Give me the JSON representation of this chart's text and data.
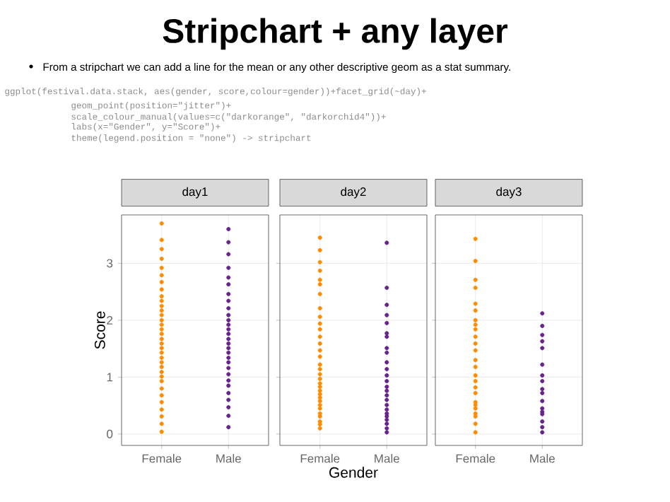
{
  "chart_data": [
    {
      "type": "scatter",
      "title": "day1",
      "ylabel": "Score",
      "categories": [
        "Female",
        "Male"
      ],
      "ylim": [
        -0.2,
        3.85
      ],
      "yticks": [
        0,
        1,
        2,
        3
      ],
      "grid": true,
      "marker": "circle",
      "annotations": [
        "Stripchart + any layer",
        "From a stripchart we can add a line for the mean or any other descriptive geom as a stat summary.",
        "ggplot(festival.data.stack, aes(gender, score,colour=gender))+facet_grid(~day)+",
        "geom_point(position=\"jitter\")+",
        "scale_colour_manual(values=c(\"darkorange\", \"darkorchid4\"))+",
        "labs(x=\"Gender\", y=\"Score\")+",
        "theme(legend.position = \"none\") -> stripchart"
      ],
      "series": [
        {
          "color": "#ff8c00",
          "x": [
            "Female",
            "Female",
            "Female",
            "Female",
            "Female",
            "Female",
            "Female",
            "Female",
            "Female",
            "Female",
            "Female",
            "Female",
            "Female",
            "Female",
            "Female",
            "Female",
            "Female",
            "Female",
            "Female",
            "Female",
            "Female",
            "Female",
            "Female",
            "Female",
            "Female",
            "Female",
            "Female",
            "Female",
            "Female",
            "Female",
            "Female",
            "Female",
            "Female",
            "Female"
          ],
          "values": [
            3.7,
            3.41,
            3.25,
            3.08,
            2.92,
            2.79,
            2.67,
            2.54,
            2.42,
            2.34,
            2.25,
            2.17,
            2.09,
            2.0,
            1.92,
            1.84,
            1.76,
            1.67,
            1.59,
            1.51,
            1.43,
            1.34,
            1.26,
            1.18,
            1.09,
            1.01,
            0.93,
            0.8,
            0.68,
            0.56,
            0.43,
            0.31,
            0.18,
            0.04
          ]
        },
        {
          "color": "#68228b",
          "x": [
            "Male",
            "Male",
            "Male",
            "Male",
            "Male",
            "Male",
            "Male",
            "Male",
            "Male",
            "Male",
            "Male",
            "Male",
            "Male",
            "Male",
            "Male",
            "Male",
            "Male",
            "Male",
            "Male",
            "Male",
            "Male",
            "Male",
            "Male",
            "Male",
            "Male",
            "Male",
            "Male",
            "Male",
            "Male"
          ],
          "values": [
            3.6,
            3.37,
            3.16,
            2.92,
            2.75,
            2.63,
            2.46,
            2.34,
            2.21,
            2.09,
            2.0,
            1.92,
            1.84,
            1.76,
            1.67,
            1.59,
            1.51,
            1.43,
            1.34,
            1.26,
            1.16,
            1.05,
            0.94,
            0.85,
            0.72,
            0.6,
            0.47,
            0.32,
            0.12
          ]
        }
      ]
    },
    {
      "type": "scatter",
      "title": "day2",
      "xlabel": "Gender",
      "categories": [
        "Female",
        "Male"
      ],
      "ylim": [
        -0.2,
        3.85
      ],
      "yticks": [
        0,
        1,
        2,
        3
      ],
      "tick_labels": "x",
      "grid": true,
      "marker": "circle",
      "series": [
        {
          "color": "#ff8c00",
          "x": [
            "Female",
            "Female",
            "Female",
            "Female",
            "Female",
            "Female",
            "Female",
            "Female",
            "Female",
            "Female",
            "Female",
            "Female",
            "Female",
            "Female",
            "Female",
            "Female",
            "Female",
            "Female",
            "Female",
            "Female",
            "Female",
            "Female",
            "Female",
            "Female",
            "Female",
            "Female",
            "Female",
            "Female",
            "Female",
            "Female",
            "Female",
            "Female"
          ],
          "values": [
            3.45,
            3.23,
            3.02,
            2.87,
            2.71,
            2.63,
            2.46,
            2.21,
            2.06,
            1.94,
            1.84,
            1.71,
            1.59,
            1.47,
            1.36,
            1.22,
            1.14,
            1.05,
            0.97,
            0.89,
            0.83,
            0.76,
            0.7,
            0.64,
            0.58,
            0.51,
            0.45,
            0.36,
            0.31,
            0.22,
            0.17,
            0.1
          ]
        },
        {
          "color": "#68228b",
          "x": [
            "Male",
            "Male",
            "Male",
            "Male",
            "Male",
            "Male",
            "Male",
            "Male",
            "Male",
            "Male",
            "Male",
            "Male",
            "Male",
            "Male",
            "Male",
            "Male",
            "Male",
            "Male",
            "Male",
            "Male",
            "Male",
            "Male",
            "Male",
            "Male",
            "Male"
          ],
          "values": [
            3.36,
            2.57,
            2.27,
            2.09,
            1.95,
            1.77,
            1.71,
            1.51,
            1.43,
            1.26,
            1.14,
            1.03,
            0.93,
            0.83,
            0.76,
            0.68,
            0.6,
            0.51,
            0.43,
            0.36,
            0.31,
            0.25,
            0.18,
            0.1,
            0.03
          ]
        }
      ]
    },
    {
      "type": "scatter",
      "title": "day3",
      "categories": [
        "Female",
        "Male"
      ],
      "ylim": [
        -0.2,
        3.85
      ],
      "yticks": [
        0,
        1,
        2,
        3
      ],
      "tick_labels": "x",
      "grid": true,
      "marker": "circle",
      "series": [
        {
          "color": "#ff8c00",
          "x": [
            "Female",
            "Female",
            "Female",
            "Female",
            "Female",
            "Female",
            "Female",
            "Female",
            "Female",
            "Female",
            "Female",
            "Female",
            "Female",
            "Female",
            "Female",
            "Female",
            "Female",
            "Female",
            "Female",
            "Female",
            "Female",
            "Female",
            "Female",
            "Female",
            "Female"
          ],
          "values": [
            3.43,
            3.04,
            2.71,
            2.57,
            2.29,
            2.17,
            2.0,
            1.92,
            1.84,
            1.71,
            1.59,
            1.47,
            1.3,
            1.18,
            1.03,
            0.93,
            0.82,
            0.72,
            0.56,
            0.51,
            0.45,
            0.36,
            0.31,
            0.18,
            0.03
          ]
        },
        {
          "color": "#68228b",
          "x": [
            "Male",
            "Male",
            "Male",
            "Male",
            "Male",
            "Male",
            "Male",
            "Male",
            "Male",
            "Male",
            "Male",
            "Male",
            "Male",
            "Male",
            "Male",
            "Male",
            "Male"
          ],
          "values": [
            2.12,
            1.9,
            1.74,
            1.63,
            1.51,
            1.22,
            1.03,
            0.93,
            0.79,
            0.72,
            0.58,
            0.45,
            0.39,
            0.35,
            0.22,
            0.12,
            0.03
          ]
        }
      ]
    }
  ]
}
